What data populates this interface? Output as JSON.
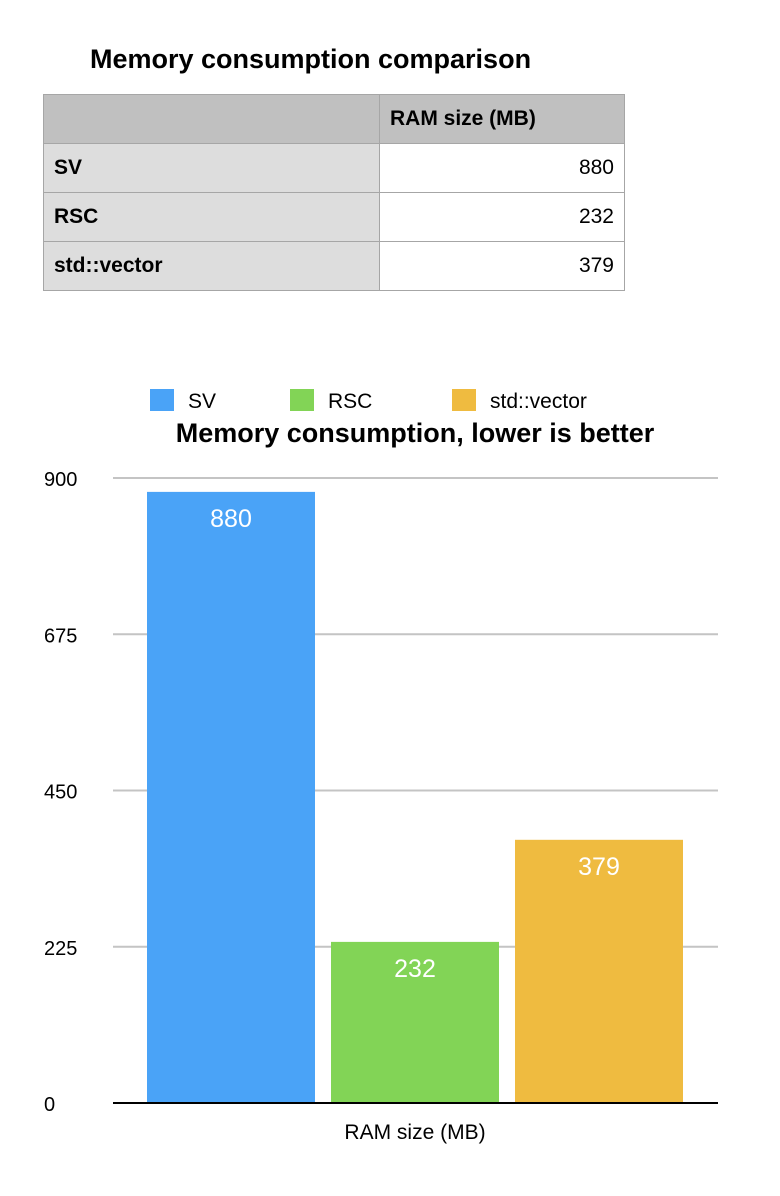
{
  "table": {
    "title": "Memory consumption comparison",
    "corner": "",
    "column_header": "RAM size (MB)",
    "rows": [
      {
        "label": "SV",
        "value": "880"
      },
      {
        "label": "RSC",
        "value": "232"
      },
      {
        "label": "std::vector",
        "value": "379"
      }
    ]
  },
  "chart_data": {
    "type": "bar",
    "title": "Memory consumption, lower is better",
    "xlabel": "RAM size (MB)",
    "ylabel": "",
    "categories": [
      "RAM size (MB)"
    ],
    "ylim": [
      0,
      900
    ],
    "yticks": [
      0,
      225,
      450,
      675,
      900
    ],
    "grid": true,
    "legend_position": "top",
    "series": [
      {
        "name": "SV",
        "values": [
          880
        ],
        "color": "#4aa3f7"
      },
      {
        "name": "RSC",
        "values": [
          232
        ],
        "color": "#82d456"
      },
      {
        "name": "std::vector",
        "values": [
          379
        ],
        "color": "#efbb40"
      }
    ],
    "data_label_color": "#ffffff"
  }
}
